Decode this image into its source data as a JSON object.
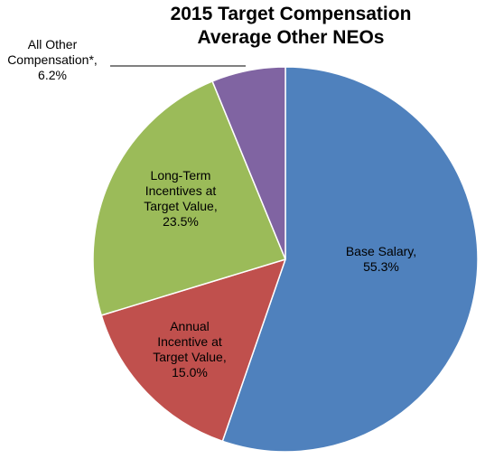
{
  "chart_data": {
    "type": "pie",
    "title": [
      "2015 Target Compensation",
      "Average Other NEOs"
    ],
    "slices": [
      {
        "name": "Base Salary",
        "value": 55.3,
        "color": "#4F81BD",
        "label": [
          "Base Salary,",
          "55.3%"
        ]
      },
      {
        "name": "Annual Incentive at Target Value",
        "value": 15.0,
        "color": "#C0504D",
        "label": [
          "Annual",
          "Incentive at",
          "Target Value,",
          "15.0%"
        ]
      },
      {
        "name": "Long-Term Incentives at Target Value",
        "value": 23.5,
        "color": "#9BBB59",
        "label": [
          "Long-Term",
          "Incentives at",
          "Target Value,",
          "23.5%"
        ]
      },
      {
        "name": "All Other Compensation*",
        "value": 6.2,
        "color": "#8064A2",
        "label": [
          "All Other",
          "Compensation*,",
          "6.2%"
        ]
      }
    ],
    "start": "12 o'clock",
    "direction": "clockwise",
    "legend": "none"
  }
}
